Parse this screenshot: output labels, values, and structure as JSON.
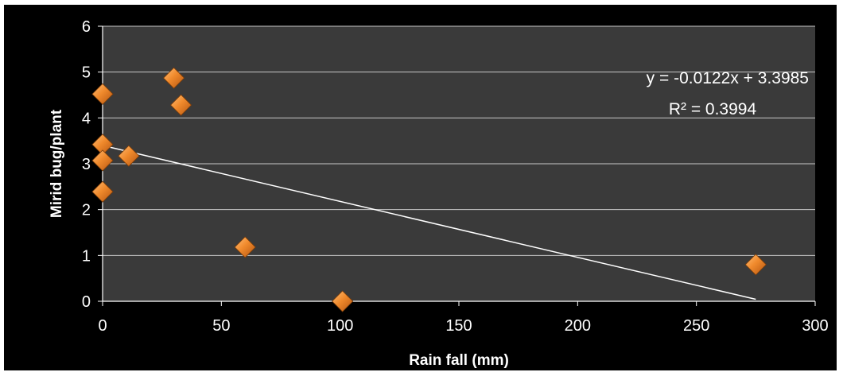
{
  "chart_data": {
    "type": "scatter",
    "title": "",
    "xlabel": "Rain fall (mm)",
    "ylabel": "Mirid bug/plant",
    "xlim": [
      0,
      300
    ],
    "ylim": [
      0,
      6
    ],
    "xticks": [
      0,
      50,
      100,
      150,
      200,
      250,
      300
    ],
    "yticks": [
      0,
      1,
      2,
      3,
      4,
      5,
      6
    ],
    "grid": "horizontal",
    "background_color": "#3a3a3a",
    "outer_color": "#000000",
    "marker_color": "#f08a2c",
    "marker_shape": "diamond",
    "trendline_color": "#ffffff",
    "series": [
      {
        "x": [
          0,
          0,
          0,
          0,
          11,
          30,
          33,
          60,
          101,
          275
        ],
        "y": [
          4.52,
          3.42,
          3.07,
          2.39,
          3.17,
          4.87,
          4.28,
          1.18,
          0.0,
          0.8
        ]
      }
    ],
    "trendline": {
      "slope": -0.0122,
      "intercept": 3.3985,
      "x_range": [
        0,
        275
      ],
      "equation": "y = -0.0122x + 3.3985",
      "r_squared": "R² = 0.3994"
    }
  }
}
